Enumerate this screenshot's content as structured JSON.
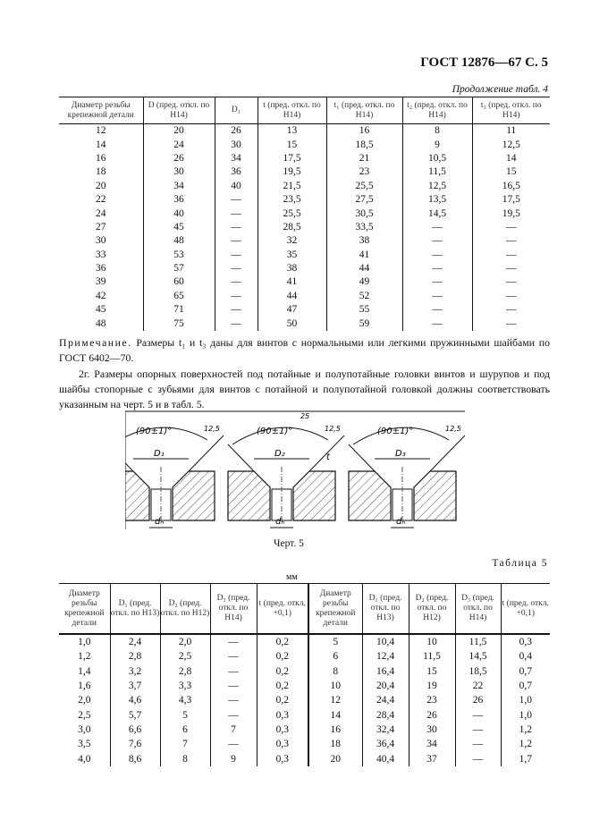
{
  "header": {
    "doc_ref": "ГОСТ 12876—67 С. 5",
    "continuation": "Продолжение табл. 4"
  },
  "table4": {
    "columns": [
      "Диаметр резьбы крепежной детали",
      "D (пред. откл. по H14)",
      "D₁",
      "t (пред. откл. по H14)",
      "t₁ (пред. откл. по H14)",
      "t₂ (пред. откл. по H14)",
      "t₃ (пред. откл. по H14)"
    ],
    "rows": [
      [
        "12",
        "20",
        "26",
        "13",
        "16",
        "8",
        "11"
      ],
      [
        "14",
        "24",
        "30",
        "15",
        "18,5",
        "9",
        "12,5"
      ],
      [
        "16",
        "26",
        "34",
        "17,5",
        "21",
        "10,5",
        "14"
      ],
      [
        "18",
        "30",
        "36",
        "19,5",
        "23",
        "11,5",
        "15"
      ],
      [
        "20",
        "34",
        "40",
        "21,5",
        "25,5",
        "12,5",
        "16,5"
      ],
      [
        "22",
        "36",
        "—",
        "23,5",
        "27,5",
        "13,5",
        "17,5"
      ],
      [
        "24",
        "40",
        "—",
        "25,5",
        "30,5",
        "14,5",
        "19,5"
      ],
      [
        "27",
        "45",
        "—",
        "28,5",
        "33,5",
        "—",
        "—"
      ],
      [
        "30",
        "48",
        "—",
        "32",
        "38",
        "—",
        "—"
      ],
      [
        "33",
        "53",
        "—",
        "35",
        "41",
        "—",
        "—"
      ],
      [
        "36",
        "57",
        "—",
        "38",
        "44",
        "—",
        "—"
      ],
      [
        "39",
        "60",
        "—",
        "41",
        "49",
        "—",
        "—"
      ],
      [
        "42",
        "65",
        "—",
        "44",
        "52",
        "—",
        "—"
      ],
      [
        "45",
        "71",
        "—",
        "47",
        "55",
        "—",
        "—"
      ],
      [
        "48",
        "75",
        "—",
        "50",
        "59",
        "—",
        "—"
      ]
    ]
  },
  "note": {
    "label": "Примечание.",
    "text": " Размеры t₁ и t₃ даны для винтов с нормальными или легкими пружинными шайбами по ГОСТ 6402—70."
  },
  "paragraph": "2г. Размеры опорных поверхностей под потайные и полупотайные головки винтов и шурупов и под шайбы стопорные с зубьями для винтов с потайной и полупотайной головкой должны соответствовать указанным на черт. 5 и в табл. 5.",
  "figure": {
    "angle": "(90±1)°",
    "roughness": "12,5",
    "roughness_top": "25",
    "labels": [
      "D₁",
      "D₂",
      "D₃"
    ],
    "d_label": "dₕ",
    "t_label": "t",
    "caption": "Черт. 5"
  },
  "table5": {
    "title": "Таблица 5",
    "unit": "мм",
    "columns": [
      "Диаметр резьбы крепежной детали",
      "D₁ (пред. откл. по H13)",
      "D₂ (пред. откл. по H12)",
      "D₃ (пред. откл. по H14)",
      "t (пред. откл. +0,1)",
      "Диаметр резьбы крепежной детали",
      "D₁ (пред. откл. по H13)",
      "D₂ (пред. откл. по H12)",
      "D₃ (пред. откл. по H14)",
      "t (пред. откл. +0,1)"
    ],
    "rows": [
      [
        "1,0",
        "2,4",
        "2,0",
        "—",
        "0,2",
        "5",
        "10,4",
        "10",
        "11,5",
        "0,3"
      ],
      [
        "1,2",
        "2,8",
        "2,5",
        "—",
        "0,2",
        "6",
        "12,4",
        "11,5",
        "14,5",
        "0,4"
      ],
      [
        "1,4",
        "3,2",
        "2,8",
        "—",
        "0,2",
        "8",
        "16,4",
        "15",
        "18,5",
        "0,7"
      ],
      [
        "1,6",
        "3,7",
        "3,3",
        "—",
        "0,2",
        "10",
        "20,4",
        "19",
        "22",
        "0,7"
      ],
      [
        "2,0",
        "4,6",
        "4,3",
        "—",
        "0,2",
        "12",
        "24,4",
        "23",
        "26",
        "1,0"
      ],
      [
        "2,5",
        "5,7",
        "5",
        "—",
        "0,3",
        "14",
        "28,4",
        "26",
        "—",
        "1,0"
      ],
      [
        "3,0",
        "6,6",
        "6",
        "7",
        "0,3",
        "16",
        "32,4",
        "30",
        "—",
        "1,2"
      ],
      [
        "3,5",
        "7,6",
        "7",
        "—",
        "0,3",
        "18",
        "36,4",
        "34",
        "—",
        "1,2"
      ],
      [
        "4,0",
        "8,6",
        "8",
        "9",
        "0,3",
        "20",
        "40,4",
        "37",
        "—",
        "1,7"
      ]
    ]
  }
}
